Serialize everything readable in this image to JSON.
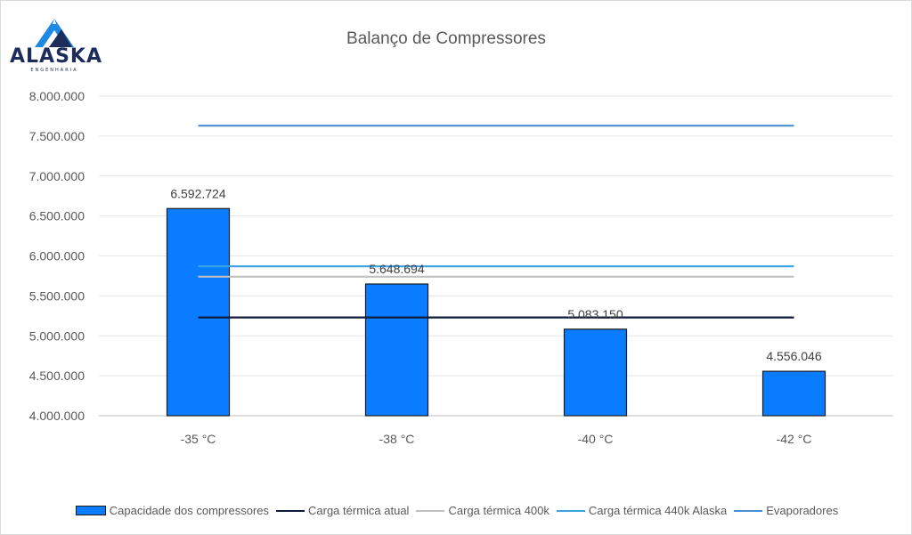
{
  "logo": {
    "word": "ALASKA",
    "subtext": "ENGENHARIA"
  },
  "chart_data": {
    "type": "bar",
    "title": "Balanço de Compressores",
    "categories": [
      "-35 °C",
      "-38 °C",
      "-40 °C",
      "-42 °C"
    ],
    "ylim": [
      4000000,
      8000000
    ],
    "yticks": [
      4000000,
      4500000,
      5000000,
      5500000,
      6000000,
      6500000,
      7000000,
      7500000,
      8000000
    ],
    "ytick_labels": [
      "4.000.000",
      "4.500.000",
      "5.000.000",
      "5.500.000",
      "6.000.000",
      "6.500.000",
      "7.000.000",
      "7.500.000",
      "8.000.000"
    ],
    "grid": true,
    "legend_position": "bottom",
    "series": [
      {
        "name": "Capacidade dos compressores",
        "kind": "bar",
        "color": "#0a7cff",
        "values": [
          6592724,
          5648694,
          5083150,
          4556046
        ],
        "data_labels": [
          "6.592.724",
          "5.648.694",
          "5.083.150",
          "4.556.046"
        ]
      },
      {
        "name": "Carga térmica atual",
        "kind": "line",
        "color": "#0f1b3d",
        "values": [
          5230000,
          5230000,
          5230000,
          5230000
        ]
      },
      {
        "name": "Carga térmica 400k",
        "kind": "line",
        "color": "#bfbfbf",
        "values": [
          5740000,
          5740000,
          5740000,
          5740000
        ]
      },
      {
        "name": "Carga térmica 440k Alaska",
        "kind": "line",
        "color": "#3aa3e3",
        "values": [
          5870000,
          5870000,
          5870000,
          5870000
        ]
      },
      {
        "name": "Evaporadores",
        "kind": "line",
        "color": "#4a8fd4",
        "values": [
          7630000,
          7630000,
          7630000,
          7630000
        ]
      }
    ]
  }
}
